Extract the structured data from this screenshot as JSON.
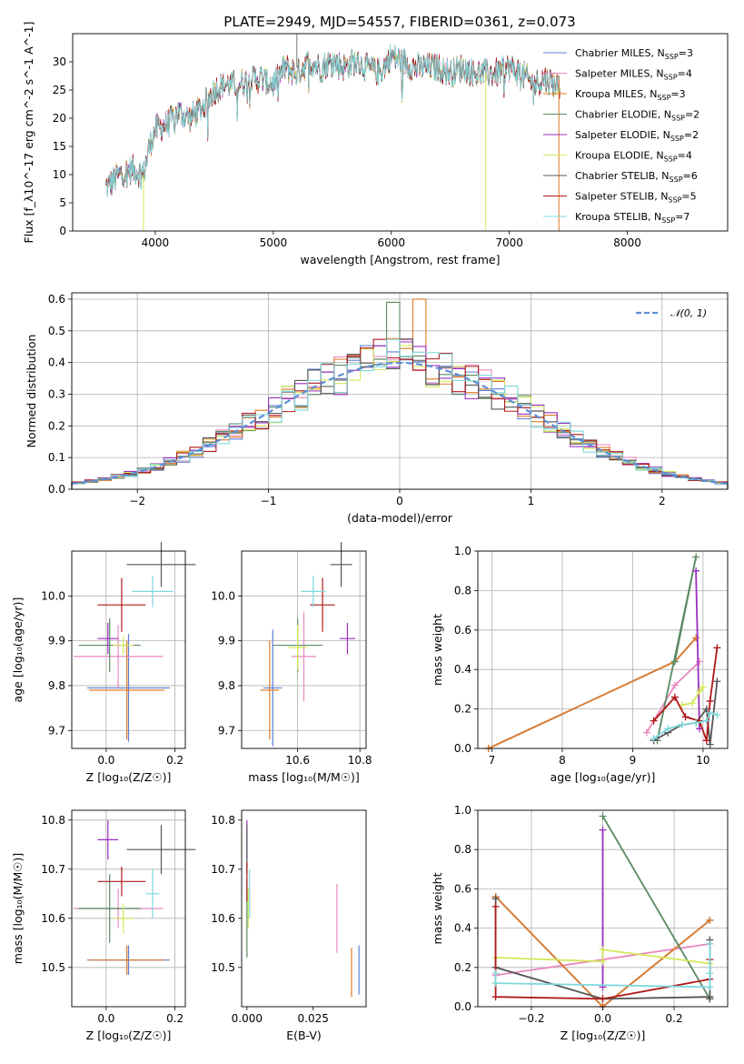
{
  "title": "PLATE=2949, MJD=54557, FIBERID=0361, z=0.073",
  "colors": [
    "#5b7fd6",
    "#e889c0",
    "#e07b28",
    "#5a8a62",
    "#9a2fbf",
    "#d4e85a",
    "#555555",
    "#b01818",
    "#7ed8dc"
  ],
  "chart_data": [
    {
      "type": "line",
      "id": "spectrum",
      "xlabel": "wavelength [Angstrom, rest frame]",
      "ylabel": "Flux [f_λ10^-17 erg cm^-2 s^-1 A^-1]",
      "xlim": [
        3300,
        8850
      ],
      "ylim": [
        0,
        35
      ],
      "xticks": [
        4000,
        5000,
        6000,
        7000,
        8000
      ],
      "yticks": [
        0,
        5,
        10,
        15,
        20,
        25,
        30
      ],
      "grid": false,
      "legend_position": "top-right",
      "spectrum_x": [
        3600,
        3700,
        3800,
        3900,
        3950,
        4000,
        4100,
        4200,
        4300,
        4400,
        4500,
        4600,
        4700,
        4800,
        4900,
        5000,
        5100,
        5200,
        5300,
        5400,
        5500,
        5600,
        5700,
        5800,
        5900,
        6000,
        6100,
        6200,
        6300,
        6400,
        6500,
        6600,
        6700,
        6800,
        6900,
        7000,
        7100,
        7200,
        7300,
        7400
      ],
      "spectrum_y": [
        8,
        10,
        11,
        10,
        15,
        18,
        19,
        21,
        20,
        22,
        25,
        26,
        26,
        27,
        27,
        26,
        29,
        28,
        30,
        29,
        30,
        29,
        30,
        29,
        28,
        31,
        30,
        29,
        29,
        29,
        28,
        29,
        28,
        28,
        28,
        29,
        28,
        26,
        27,
        26
      ],
      "series": [
        {
          "name": "Chabrier MILES, N_SSP=3"
        },
        {
          "name": "Salpeter MILES, N_SSP=4"
        },
        {
          "name": "Kroupa MILES, N_SSP=3"
        },
        {
          "name": "Chabrier ELODIE, N_SSP=2"
        },
        {
          "name": "Salpeter ELODIE, N_SSP=2"
        },
        {
          "name": "Kroupa ELODIE, N_SSP=4"
        },
        {
          "name": "Chabrier STELIB, N_SSP=6"
        },
        {
          "name": "Salpeter STELIB, N_SSP=5"
        },
        {
          "name": "Kroupa STELIB, N_SSP=7"
        }
      ]
    },
    {
      "type": "histogram",
      "id": "residuals",
      "xlabel": "(data-model)/error",
      "ylabel": "Normed distribution",
      "xlim": [
        -2.5,
        2.5
      ],
      "ylim": [
        0,
        0.62
      ],
      "xticks": [
        -2,
        -1,
        0,
        1,
        2
      ],
      "yticks": [
        0.0,
        0.1,
        0.2,
        0.3,
        0.4,
        0.5,
        0.6
      ],
      "grid": true,
      "legend_position": "top-right",
      "bin_width": 0.1,
      "reference_curve": {
        "name": "N(0,1)",
        "label": "𝒩(0, 1)",
        "mean": 0,
        "sigma": 1
      },
      "peak_values": [
        0.46,
        0.4,
        0.6,
        0.59,
        0.49,
        0.47,
        0.44,
        0.48,
        0.42
      ]
    },
    {
      "type": "scatter",
      "id": "age-vs-Z",
      "xlabel": "Z [log₁₀(Z/Z☉)]",
      "ylabel": "age [log₁₀(age/yr)]",
      "xlim": [
        -0.1,
        0.23
      ],
      "ylim": [
        9.66,
        10.1
      ],
      "xticks": [
        0.0,
        0.2
      ],
      "yticks": [
        9.7,
        9.8,
        9.9,
        10.0
      ],
      "grid": true,
      "points": [
        {
          "x": 0.065,
          "y": 9.795,
          "xerr": 0.12,
          "yerr": 0.12
        },
        {
          "x": 0.035,
          "y": 9.865,
          "xerr": 0.13,
          "yerr": 0.07
        },
        {
          "x": 0.06,
          "y": 9.79,
          "xerr": 0.11,
          "yerr": 0.11
        },
        {
          "x": 0.01,
          "y": 9.89,
          "xerr": 0.09,
          "yerr": 0.06
        },
        {
          "x": 0.005,
          "y": 9.905,
          "xerr": 0.03,
          "yerr": 0.035
        },
        {
          "x": 0.05,
          "y": 9.89,
          "xerr": 0.03,
          "yerr": 0.02
        },
        {
          "x": 0.16,
          "y": 10.07,
          "xerr": 0.1,
          "yerr": 0.05
        },
        {
          "x": 0.045,
          "y": 9.98,
          "xerr": 0.07,
          "yerr": 0.06
        },
        {
          "x": 0.135,
          "y": 10.01,
          "xerr": 0.06,
          "yerr": 0.035
        }
      ]
    },
    {
      "type": "scatter",
      "id": "age-vs-mass",
      "xlabel": "mass [log₁₀(M/M☉)]",
      "ylabel": "",
      "xlim": [
        10.42,
        10.82
      ],
      "ylim": [
        9.66,
        10.1
      ],
      "xticks": [
        10.6,
        10.8
      ],
      "yticks": [
        9.7,
        9.8,
        9.9,
        10.0
      ],
      "grid": true,
      "points": [
        {
          "x": 10.52,
          "y": 9.795,
          "xerr": 0.03,
          "yerr": 0.13
        },
        {
          "x": 10.62,
          "y": 9.865,
          "xerr": 0.04,
          "yerr": 0.1
        },
        {
          "x": 10.51,
          "y": 9.79,
          "xerr": 0.03,
          "yerr": 0.11
        },
        {
          "x": 10.6,
          "y": 9.89,
          "xerr": 0.08,
          "yerr": 0.06
        },
        {
          "x": 10.76,
          "y": 9.905,
          "xerr": 0.025,
          "yerr": 0.035
        },
        {
          "x": 10.6,
          "y": 9.885,
          "xerr": 0.03,
          "yerr": 0.05
        },
        {
          "x": 10.74,
          "y": 10.07,
          "xerr": 0.035,
          "yerr": 0.05
        },
        {
          "x": 10.68,
          "y": 9.98,
          "xerr": 0.04,
          "yerr": 0.06
        },
        {
          "x": 10.65,
          "y": 10.01,
          "xerr": 0.04,
          "yerr": 0.035
        }
      ]
    },
    {
      "type": "line",
      "id": "mass-weight-vs-age",
      "xlabel": "age [log₁₀(age/yr)]",
      "ylabel": "mass weight",
      "xlim": [
        6.8,
        10.35
      ],
      "ylim": [
        0,
        1.0
      ],
      "xticks": [
        7,
        8,
        9,
        10
      ],
      "yticks": [
        0.0,
        0.2,
        0.4,
        0.6,
        0.8,
        1.0
      ],
      "grid": true,
      "series": [
        {
          "x": [
            6.95,
            9.6,
            9.9
          ],
          "y": [
            0.0,
            0.44,
            0.56
          ]
        },
        {
          "x": [
            9.2,
            9.6,
            9.95
          ],
          "y": [
            0.08,
            0.32,
            0.44
          ]
        },
        {
          "x": [
            6.95,
            9.6,
            9.9
          ],
          "y": [
            0.0,
            0.44,
            0.56
          ]
        },
        {
          "x": [
            9.6,
            9.9,
            9.35
          ],
          "y": [
            0.44,
            0.97,
            0.04
          ]
        },
        {
          "x": [
            9.9,
            9.95
          ],
          "y": [
            0.9,
            0.1
          ]
        },
        {
          "x": [
            9.7,
            9.85,
            9.95,
            10.0
          ],
          "y": [
            0.22,
            0.23,
            0.29,
            0.31
          ]
        },
        {
          "x": [
            9.3,
            9.5,
            9.7,
            9.9,
            10.05,
            10.1,
            10.2
          ],
          "y": [
            0.04,
            0.08,
            0.12,
            0.13,
            0.2,
            0.02,
            0.34
          ]
        },
        {
          "x": [
            9.3,
            9.6,
            9.75,
            9.95,
            10.05,
            10.1,
            10.2
          ],
          "y": [
            0.14,
            0.26,
            0.16,
            0.14,
            0.04,
            0.24,
            0.51
          ]
        },
        {
          "x": [
            9.3,
            9.5,
            9.7,
            9.9,
            10.05,
            10.1,
            10.2
          ],
          "y": [
            0.05,
            0.1,
            0.12,
            0.13,
            0.14,
            0.18,
            0.17
          ]
        }
      ]
    },
    {
      "type": "scatter",
      "id": "mass-vs-Z",
      "xlabel": "Z [log₁₀(Z/Z☉)]",
      "ylabel": "mass [log₁₀(M/M☉)]",
      "xlim": [
        -0.1,
        0.23
      ],
      "ylim": [
        10.42,
        10.82
      ],
      "xticks": [
        0.0,
        0.2
      ],
      "yticks": [
        10.5,
        10.6,
        10.7,
        10.8
      ],
      "grid": true,
      "points": [
        {
          "x": 0.065,
          "y": 10.515,
          "xerr": 0.12,
          "yerr": 0.03
        },
        {
          "x": 0.035,
          "y": 10.62,
          "xerr": 0.13,
          "yerr": 0.04
        },
        {
          "x": 0.06,
          "y": 10.515,
          "xerr": 0.11,
          "yerr": 0.03
        },
        {
          "x": 0.01,
          "y": 10.62,
          "xerr": 0.09,
          "yerr": 0.07
        },
        {
          "x": 0.005,
          "y": 10.76,
          "xerr": 0.03,
          "yerr": 0.04
        },
        {
          "x": 0.05,
          "y": 10.6,
          "xerr": 0.03,
          "yerr": 0.03
        },
        {
          "x": 0.16,
          "y": 10.74,
          "xerr": 0.1,
          "yerr": 0.05
        },
        {
          "x": 0.045,
          "y": 10.675,
          "xerr": 0.07,
          "yerr": 0.03
        },
        {
          "x": 0.135,
          "y": 10.65,
          "xerr": 0.02,
          "yerr": 0.05
        }
      ]
    },
    {
      "type": "scatter",
      "id": "mass-vs-EBV",
      "xlabel": "E(B-V)",
      "ylabel": "",
      "xlim": [
        -0.002,
        0.045
      ],
      "ylim": [
        10.42,
        10.82
      ],
      "xticks": [
        0.0,
        0.025
      ],
      "yticks": [
        10.5,
        10.6,
        10.7,
        10.8
      ],
      "grid": false,
      "points": [
        {
          "x": 0.0423,
          "y": 10.495,
          "yerr": 0.05
        },
        {
          "x": 0.034,
          "y": 10.6,
          "yerr": 0.07
        },
        {
          "x": 0.0395,
          "y": 10.49,
          "yerr": 0.05
        },
        {
          "x": 0.0,
          "y": 10.6,
          "yerr": 0.08
        },
        {
          "x": 0.0,
          "y": 10.76,
          "yerr": 0.04
        },
        {
          "x": 0.0005,
          "y": 10.62,
          "yerr": 0.04
        },
        {
          "x": 0.0,
          "y": 10.74,
          "yerr": 0.05
        },
        {
          "x": 0.0,
          "y": 10.675,
          "yerr": 0.04
        },
        {
          "x": 0.001,
          "y": 10.65,
          "yerr": 0.05
        }
      ]
    },
    {
      "type": "line",
      "id": "mass-weight-vs-Z",
      "xlabel": "Z [log₁₀(Z/Z☉)]",
      "ylabel": "mass weight",
      "xlim": [
        -0.35,
        0.35
      ],
      "ylim": [
        0,
        1.0
      ],
      "xticks": [
        -0.2,
        0.0,
        0.2
      ],
      "yticks": [
        0.0,
        0.2,
        0.4,
        0.6,
        0.8,
        1.0
      ],
      "grid": true,
      "series": [
        {
          "x": [
            -0.3,
            0.0,
            0.3
          ],
          "y": [
            0.56,
            0.0,
            0.44
          ]
        },
        {
          "x": [
            -0.3,
            0.3
          ],
          "y": [
            0.16,
            0.32
          ]
        },
        {
          "x": [
            -0.3,
            0.0,
            0.3
          ],
          "y": [
            0.56,
            0.0,
            0.44
          ]
        },
        {
          "x": [
            0.0,
            0.3
          ],
          "y": [
            0.97,
            0.04
          ]
        },
        {
          "x": [
            0.0,
            0.0
          ],
          "y": [
            0.9,
            0.1
          ]
        },
        {
          "x": [
            -0.3,
            0.0,
            0.0,
            0.3
          ],
          "y": [
            0.25,
            0.23,
            0.29,
            0.22
          ]
        },
        {
          "x": [
            -0.3,
            -0.3,
            0.0,
            0.3,
            0.3,
            0.3
          ],
          "y": [
            0.55,
            0.2,
            0.04,
            0.05,
            0.34,
            0.04
          ]
        },
        {
          "x": [
            -0.3,
            -0.3,
            0.0,
            0.3,
            0.3
          ],
          "y": [
            0.51,
            0.05,
            0.04,
            0.14,
            0.24
          ]
        },
        {
          "x": [
            -0.3,
            -0.3,
            0.3,
            0.3,
            0.3
          ],
          "y": [
            0.17,
            0.12,
            0.1,
            0.17,
            0.32
          ]
        }
      ]
    }
  ]
}
